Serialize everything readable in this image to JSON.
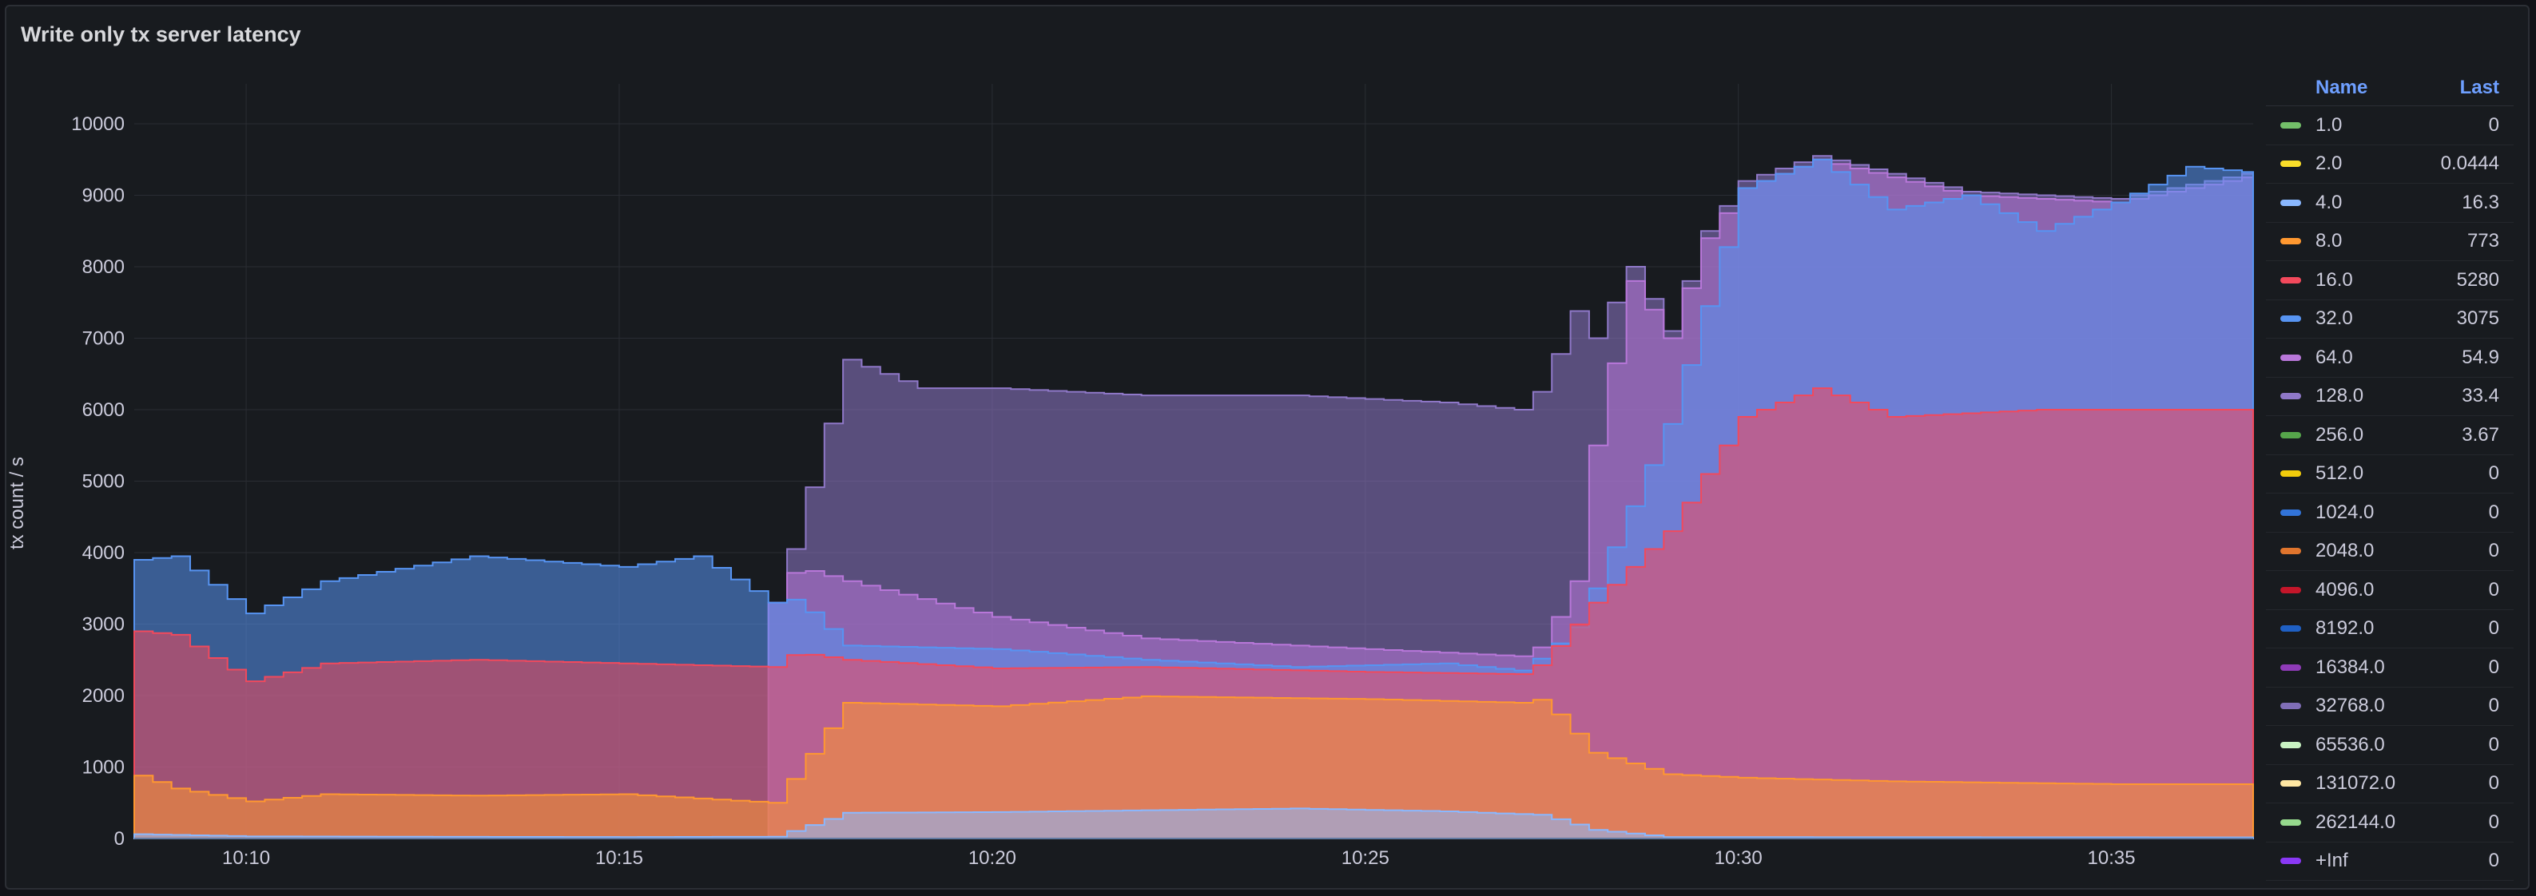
{
  "panel": {
    "title": "Write only tx server latency"
  },
  "legend": {
    "header_name": "Name",
    "header_last": "Last"
  },
  "chart_data": {
    "type": "area",
    "stacked": true,
    "title": "Write only tx server latency",
    "ylabel": "tx count / s",
    "xlabel": "",
    "ylim": [
      0,
      10000
    ],
    "yticks": [
      0,
      1000,
      2000,
      3000,
      4000,
      5000,
      6000,
      7000,
      8000,
      9000,
      10000
    ],
    "xticks": [
      "10:10",
      "10:15",
      "10:20",
      "10:25",
      "10:30",
      "10:35"
    ],
    "x_start_minute": 8.5,
    "x_end_minute": 36.9,
    "grid": true,
    "legend_position": "right",
    "series": [
      {
        "name": "1.0",
        "color": "#73bf69",
        "last": "0"
      },
      {
        "name": "2.0",
        "color": "#fade2a",
        "last": "0.0444"
      },
      {
        "name": "4.0",
        "color": "#8ab8ff",
        "last": "16.3",
        "points": [
          [
            8.5,
            60
          ],
          [
            10,
            30
          ],
          [
            12,
            25
          ],
          [
            15,
            20
          ],
          [
            17,
            25
          ],
          [
            17.3,
            120
          ],
          [
            18,
            360
          ],
          [
            20,
            370
          ],
          [
            24,
            420
          ],
          [
            26,
            380
          ],
          [
            27.3,
            330
          ],
          [
            28,
            120
          ],
          [
            29,
            20
          ],
          [
            37,
            15
          ]
        ]
      },
      {
        "name": "8.0",
        "color": "#ff9830",
        "last": "773",
        "points": [
          [
            8.5,
            880
          ],
          [
            9,
            700
          ],
          [
            10,
            520
          ],
          [
            11,
            620
          ],
          [
            13,
            600
          ],
          [
            15,
            620
          ],
          [
            17,
            500
          ],
          [
            17.3,
            900
          ],
          [
            18,
            1900
          ],
          [
            20,
            1850
          ],
          [
            22,
            1990
          ],
          [
            25,
            1950
          ],
          [
            27,
            1900
          ],
          [
            27.3,
            1950
          ],
          [
            28,
            1200
          ],
          [
            29,
            900
          ],
          [
            30,
            850
          ],
          [
            32,
            800
          ],
          [
            35,
            760
          ],
          [
            37,
            760
          ]
        ]
      },
      {
        "name": "16.0",
        "color": "#f2495c",
        "last": "5280",
        "points": [
          [
            8.5,
            2900
          ],
          [
            9,
            2850
          ],
          [
            10,
            2200
          ],
          [
            11,
            2450
          ],
          [
            13,
            2500
          ],
          [
            15,
            2450
          ],
          [
            17,
            2400
          ],
          [
            17.3,
            2600
          ],
          [
            18,
            2500
          ],
          [
            20,
            2380
          ],
          [
            22,
            2400
          ],
          [
            25,
            2330
          ],
          [
            27,
            2300
          ],
          [
            27.3,
            2450
          ],
          [
            28,
            3300
          ],
          [
            29,
            4300
          ],
          [
            30,
            5900
          ],
          [
            31,
            6300
          ],
          [
            32,
            5900
          ],
          [
            34,
            6000
          ],
          [
            36,
            6000
          ],
          [
            37,
            6000
          ]
        ]
      },
      {
        "name": "32.0",
        "color": "#5794f2",
        "last": "3075",
        "points": [
          [
            8.5,
            3900
          ],
          [
            9,
            3950
          ],
          [
            10,
            3150
          ],
          [
            11,
            3600
          ],
          [
            13,
            3950
          ],
          [
            15,
            3800
          ],
          [
            16,
            3950
          ],
          [
            17,
            3300
          ],
          [
            17.3,
            3350
          ],
          [
            18,
            2700
          ],
          [
            20,
            2650
          ],
          [
            22,
            2500
          ],
          [
            24,
            2400
          ],
          [
            26,
            2450
          ],
          [
            27,
            2350
          ],
          [
            27.3,
            2550
          ],
          [
            27.8,
            3000
          ],
          [
            28,
            3500
          ],
          [
            29,
            5800
          ],
          [
            30,
            9100
          ],
          [
            31,
            9500
          ],
          [
            32,
            8800
          ],
          [
            33,
            9000
          ],
          [
            34,
            8500
          ],
          [
            35,
            8900
          ],
          [
            36,
            9400
          ],
          [
            37,
            9300
          ]
        ]
      },
      {
        "name": "64.0",
        "color": "#b877d9",
        "last": "54.9",
        "points": [
          [
            17,
            3300
          ],
          [
            17.3,
            3800
          ],
          [
            18,
            3600
          ],
          [
            20,
            3100
          ],
          [
            22,
            2800
          ],
          [
            24,
            2700
          ],
          [
            26,
            2600
          ],
          [
            27,
            2550
          ],
          [
            27.3,
            2700
          ],
          [
            27.8,
            3700
          ],
          [
            28,
            5500
          ],
          [
            28.5,
            7800
          ],
          [
            29,
            7000
          ],
          [
            29.5,
            8400
          ],
          [
            30,
            9100
          ],
          [
            31,
            9500
          ],
          [
            33,
            9000
          ],
          [
            35,
            8900
          ],
          [
            37,
            9300
          ]
        ]
      },
      {
        "name": "128.0",
        "color": "#8f78c8",
        "last": "33.4",
        "points": [
          [
            17,
            3300
          ],
          [
            17.3,
            4200
          ],
          [
            18,
            6700
          ],
          [
            19,
            6300
          ],
          [
            20,
            6300
          ],
          [
            22,
            6200
          ],
          [
            24,
            6200
          ],
          [
            26,
            6100
          ],
          [
            27,
            6000
          ],
          [
            27.3,
            6300
          ],
          [
            27.8,
            7500
          ],
          [
            28,
            7000
          ],
          [
            28.5,
            8000
          ],
          [
            29,
            7100
          ],
          [
            29.5,
            8500
          ],
          [
            30,
            9200
          ],
          [
            31,
            9550
          ],
          [
            33,
            9050
          ],
          [
            35,
            8950
          ],
          [
            37,
            9350
          ]
        ]
      },
      {
        "name": "256.0",
        "color": "#56a64b",
        "last": "3.67"
      },
      {
        "name": "512.0",
        "color": "#f2cc0c",
        "last": "0"
      },
      {
        "name": "1024.0",
        "color": "#3274d9",
        "last": "0"
      },
      {
        "name": "2048.0",
        "color": "#e0752d",
        "last": "0"
      },
      {
        "name": "4096.0",
        "color": "#c4162a",
        "last": "0"
      },
      {
        "name": "8192.0",
        "color": "#1f60c4",
        "last": "0"
      },
      {
        "name": "16384.0",
        "color": "#8f3bb8",
        "last": "0"
      },
      {
        "name": "32768.0",
        "color": "#806eb7",
        "last": "0"
      },
      {
        "name": "65536.0",
        "color": "#c8f2c2",
        "last": "0"
      },
      {
        "name": "131072.0",
        "color": "#ffe7a3",
        "last": "0"
      },
      {
        "name": "262144.0",
        "color": "#96d98d",
        "last": "0"
      },
      {
        "name": "+Inf",
        "color": "#8a38f5",
        "last": "0"
      }
    ]
  }
}
